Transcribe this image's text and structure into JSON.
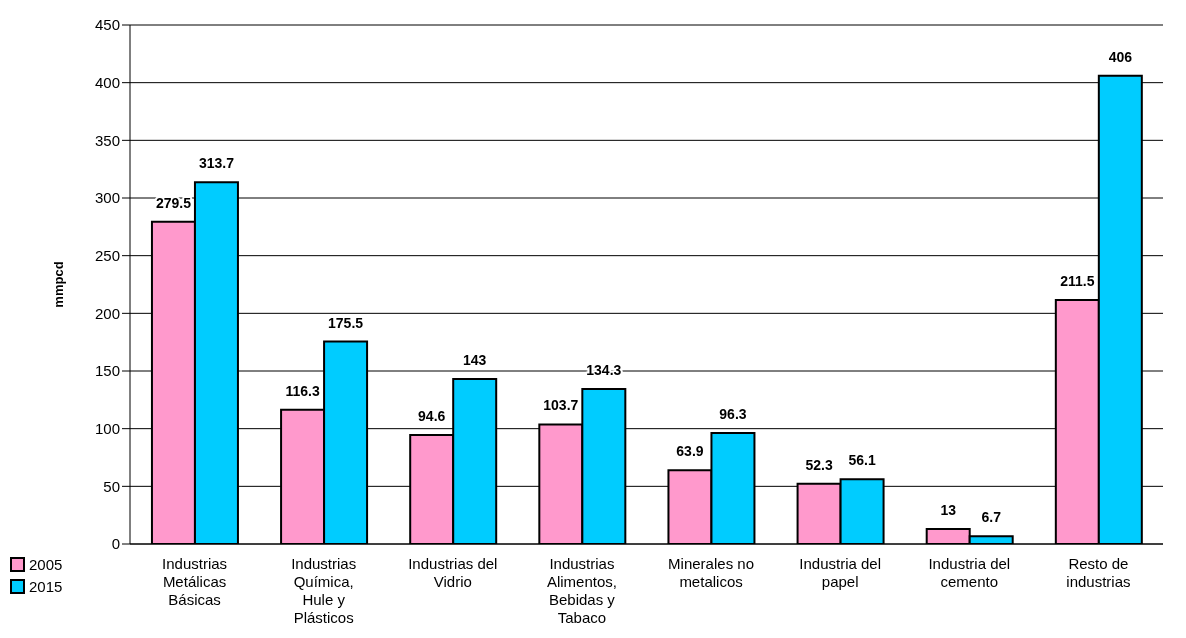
{
  "chart_data": {
    "type": "bar",
    "ylabel": "mmpcd",
    "categories": [
      "Industrias Metálicas Básicas",
      "Industrias Química, Hule y Plásticos",
      "Industrias del Vidrio",
      "Industrias Alimentos, Bebidas y Tabaco",
      "Minerales no metalicos",
      "Industria del papel",
      "Industria del cemento",
      "Resto de industrias"
    ],
    "series": [
      {
        "name": "2005",
        "color": "#ff99cc",
        "values": [
          279.5,
          116.3,
          94.6,
          103.7,
          63.9,
          52.3,
          13,
          211.5
        ]
      },
      {
        "name": "2015",
        "color": "#00ccff",
        "values": [
          313.7,
          175.5,
          143,
          134.3,
          96.3,
          56.1,
          6.7,
          406
        ]
      }
    ],
    "ylim": [
      0,
      450
    ],
    "yticks": [
      0,
      50,
      100,
      150,
      200,
      250,
      300,
      350,
      400,
      450
    ],
    "grid": "y",
    "legend": "bottom left",
    "data_labels": true
  }
}
